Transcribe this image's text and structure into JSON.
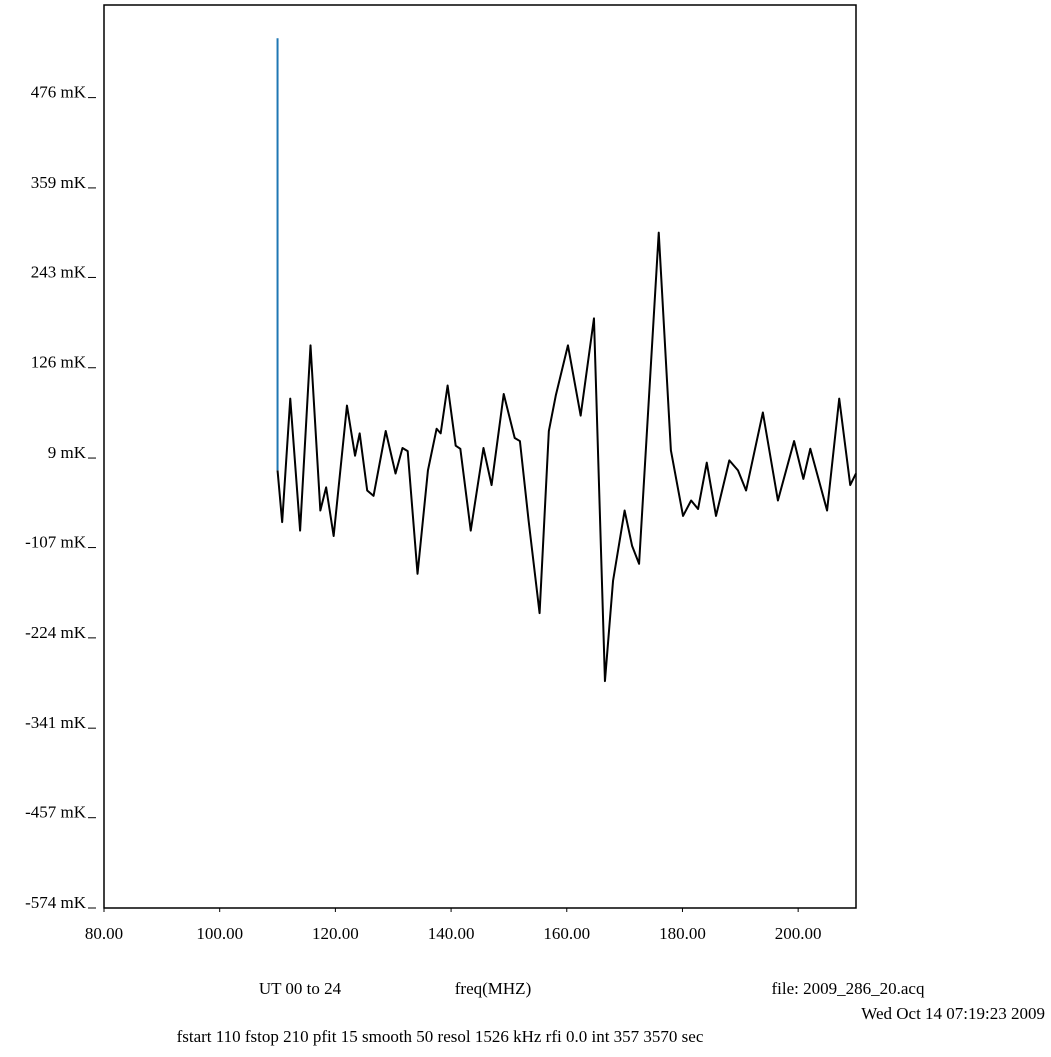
{
  "chart_data": {
    "type": "line",
    "xlabel": "freq(MHZ)",
    "annotations": [
      "UT 00 to 24",
      "file: 2009_286_20.acq",
      "Wed Oct 14 07:19:23 2009",
      "fstart 110 fstop 210 pfit 15 smooth 50 resol 1526 kHz rfi 0.0 int 357  3570 sec"
    ],
    "xlim": [
      80,
      210
    ],
    "ylim": [
      -574,
      596
    ],
    "xticks": [
      {
        "value": 80,
        "label": "80.00"
      },
      {
        "value": 100,
        "label": "100.00"
      },
      {
        "value": 120,
        "label": "120.00"
      },
      {
        "value": 140,
        "label": "140.00"
      },
      {
        "value": 160,
        "label": "160.00"
      },
      {
        "value": 180,
        "label": "180.00"
      },
      {
        "value": 200,
        "label": "200.00"
      }
    ],
    "yticks": [
      {
        "value": 476,
        "label": "476 mK"
      },
      {
        "value": 359,
        "label": "359 mK"
      },
      {
        "value": 243,
        "label": "243 mK"
      },
      {
        "value": 126,
        "label": "126 mK"
      },
      {
        "value": 9,
        "label": "9 mK"
      },
      {
        "value": -107,
        "label": "-107 mK"
      },
      {
        "value": -224,
        "label": "-224 mK"
      },
      {
        "value": -341,
        "label": "-341 mK"
      },
      {
        "value": -457,
        "label": "-457 mK"
      },
      {
        "value": -574,
        "label": "-574 mK"
      }
    ],
    "series": [
      {
        "color": "#000000",
        "x": [
          110.0,
          110.8,
          112.2,
          113.9,
          115.7,
          117.4,
          118.4,
          119.7,
          122.0,
          123.4,
          124.2,
          125.5,
          126.6,
          128.7,
          130.4,
          131.6,
          132.5,
          134.2,
          136.0,
          137.5,
          138.2,
          139.4,
          140.8,
          141.6,
          143.4,
          145.6,
          147.0,
          149.1,
          151.0,
          151.9,
          153.4,
          155.3,
          156.9,
          158.1,
          160.2,
          162.4,
          164.7,
          166.6,
          168.0,
          170.0,
          171.3,
          172.5,
          175.9,
          178.0,
          180.1,
          181.5,
          182.7,
          184.2,
          185.8,
          188.1,
          189.6,
          191.0,
          193.9,
          196.5,
          199.3,
          200.9,
          202.1,
          205.0,
          207.1,
          209.0,
          210.0
        ],
        "values": [
          -7,
          -74,
          86,
          -85,
          155,
          -59,
          -29,
          -92,
          77,
          12,
          41,
          -33,
          -40,
          44,
          -11,
          22,
          18,
          -141,
          -7,
          47,
          41,
          103,
          25,
          21,
          -85,
          22,
          -26,
          92,
          35,
          31,
          -72,
          -192,
          44,
          90,
          155,
          64,
          190,
          -280,
          -150,
          -59,
          -105,
          -128,
          301,
          19,
          -66,
          -46,
          -57,
          3,
          -66,
          6,
          -7,
          -33,
          68,
          -46,
          31,
          -18,
          21,
          -59,
          86,
          -26,
          -11
        ]
      },
      {
        "color": "#1f77b4",
        "x": [
          110,
          110
        ],
        "values": [
          -7,
          553
        ]
      }
    ]
  }
}
